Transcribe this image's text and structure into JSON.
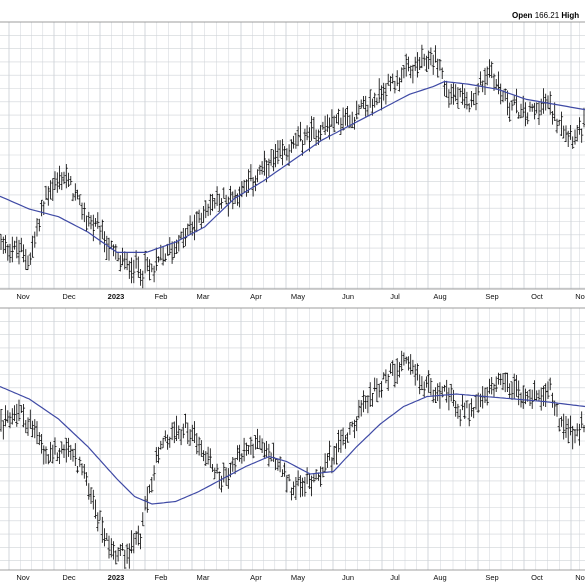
{
  "header": {
    "open_label": "Open",
    "open_value": "166.21",
    "high_label": "High"
  },
  "chart_data": [
    {
      "type": "ohlc-line",
      "title": "",
      "months": [
        "Nov",
        "Dec",
        "2023",
        "Feb",
        "Mar",
        "Apr",
        "May",
        "Jun",
        "Jul",
        "Aug",
        "Sep",
        "Oct",
        "No"
      ],
      "price_path": [
        [
          0,
          0.16
        ],
        [
          0.05,
          0.1
        ],
        [
          0.08,
          0.36
        ],
        [
          0.11,
          0.42
        ],
        [
          0.14,
          0.28
        ],
        [
          0.18,
          0.16
        ],
        [
          0.2,
          0.09
        ],
        [
          0.22,
          0.07
        ],
        [
          0.26,
          0.05
        ],
        [
          0.28,
          0.11
        ],
        [
          0.32,
          0.19
        ],
        [
          0.36,
          0.31
        ],
        [
          0.4,
          0.34
        ],
        [
          0.44,
          0.42
        ],
        [
          0.48,
          0.5
        ],
        [
          0.52,
          0.57
        ],
        [
          0.56,
          0.62
        ],
        [
          0.6,
          0.65
        ],
        [
          0.64,
          0.71
        ],
        [
          0.66,
          0.77
        ],
        [
          0.7,
          0.83
        ],
        [
          0.74,
          0.88
        ],
        [
          0.755,
          0.86
        ],
        [
          0.76,
          0.76
        ],
        [
          0.8,
          0.7
        ],
        [
          0.83,
          0.8
        ],
        [
          0.84,
          0.84
        ],
        [
          0.85,
          0.78
        ],
        [
          0.87,
          0.71
        ],
        [
          0.9,
          0.66
        ],
        [
          0.93,
          0.71
        ],
        [
          0.96,
          0.64
        ],
        [
          0.98,
          0.58
        ],
        [
          1.0,
          0.62
        ]
      ],
      "ma_path": [
        [
          0,
          0.34
        ],
        [
          0.05,
          0.29
        ],
        [
          0.1,
          0.26
        ],
        [
          0.15,
          0.2
        ],
        [
          0.2,
          0.12
        ],
        [
          0.25,
          0.12
        ],
        [
          0.3,
          0.16
        ],
        [
          0.35,
          0.22
        ],
        [
          0.4,
          0.33
        ],
        [
          0.45,
          0.4
        ],
        [
          0.5,
          0.48
        ],
        [
          0.55,
          0.56
        ],
        [
          0.6,
          0.62
        ],
        [
          0.65,
          0.68
        ],
        [
          0.7,
          0.74
        ],
        [
          0.74,
          0.77
        ],
        [
          0.76,
          0.79
        ],
        [
          0.8,
          0.78
        ],
        [
          0.85,
          0.76
        ],
        [
          0.9,
          0.72
        ],
        [
          0.95,
          0.7
        ],
        [
          1.0,
          0.68
        ]
      ]
    },
    {
      "type": "ohlc-line",
      "title": "",
      "months": [
        "Nov",
        "Dec",
        "2023",
        "Feb",
        "Mar",
        "Apr",
        "May",
        "Jun",
        "Jul",
        "Aug",
        "Sep",
        "Oct",
        "No"
      ],
      "price_path": [
        [
          0,
          0.55
        ],
        [
          0.03,
          0.62
        ],
        [
          0.05,
          0.56
        ],
        [
          0.08,
          0.42
        ],
        [
          0.11,
          0.47
        ],
        [
          0.14,
          0.38
        ],
        [
          0.16,
          0.24
        ],
        [
          0.18,
          0.1
        ],
        [
          0.2,
          0.04
        ],
        [
          0.22,
          0.06
        ],
        [
          0.24,
          0.12
        ],
        [
          0.26,
          0.36
        ],
        [
          0.28,
          0.48
        ],
        [
          0.3,
          0.52
        ],
        [
          0.32,
          0.55
        ],
        [
          0.34,
          0.48
        ],
        [
          0.36,
          0.4
        ],
        [
          0.38,
          0.34
        ],
        [
          0.4,
          0.4
        ],
        [
          0.42,
          0.46
        ],
        [
          0.44,
          0.48
        ],
        [
          0.46,
          0.44
        ],
        [
          0.48,
          0.37
        ],
        [
          0.5,
          0.3
        ],
        [
          0.52,
          0.31
        ],
        [
          0.55,
          0.38
        ],
        [
          0.58,
          0.47
        ],
        [
          0.6,
          0.55
        ],
        [
          0.62,
          0.62
        ],
        [
          0.64,
          0.7
        ],
        [
          0.67,
          0.76
        ],
        [
          0.7,
          0.8
        ],
        [
          0.72,
          0.73
        ],
        [
          0.75,
          0.7
        ],
        [
          0.77,
          0.66
        ],
        [
          0.79,
          0.61
        ],
        [
          0.82,
          0.64
        ],
        [
          0.84,
          0.69
        ],
        [
          0.86,
          0.72
        ],
        [
          0.88,
          0.7
        ],
        [
          0.9,
          0.66
        ],
        [
          0.92,
          0.68
        ],
        [
          0.94,
          0.7
        ],
        [
          0.96,
          0.56
        ],
        [
          0.98,
          0.52
        ],
        [
          1.0,
          0.54
        ]
      ],
      "ma_path": [
        [
          0,
          0.71
        ],
        [
          0.05,
          0.66
        ],
        [
          0.1,
          0.58
        ],
        [
          0.15,
          0.47
        ],
        [
          0.2,
          0.34
        ],
        [
          0.23,
          0.27
        ],
        [
          0.26,
          0.24
        ],
        [
          0.3,
          0.25
        ],
        [
          0.34,
          0.29
        ],
        [
          0.38,
          0.34
        ],
        [
          0.42,
          0.39
        ],
        [
          0.46,
          0.43
        ],
        [
          0.49,
          0.41
        ],
        [
          0.53,
          0.36
        ],
        [
          0.57,
          0.37
        ],
        [
          0.61,
          0.47
        ],
        [
          0.65,
          0.56
        ],
        [
          0.69,
          0.63
        ],
        [
          0.73,
          0.67
        ],
        [
          0.78,
          0.68
        ],
        [
          0.83,
          0.67
        ],
        [
          0.88,
          0.66
        ],
        [
          0.93,
          0.65
        ],
        [
          1.0,
          0.63
        ]
      ]
    }
  ],
  "colors": {
    "price_bars": "#000000",
    "moving_average": "#3f4aa5",
    "grid": "#cfd3d8",
    "panel_border": "#8a8a8a"
  }
}
